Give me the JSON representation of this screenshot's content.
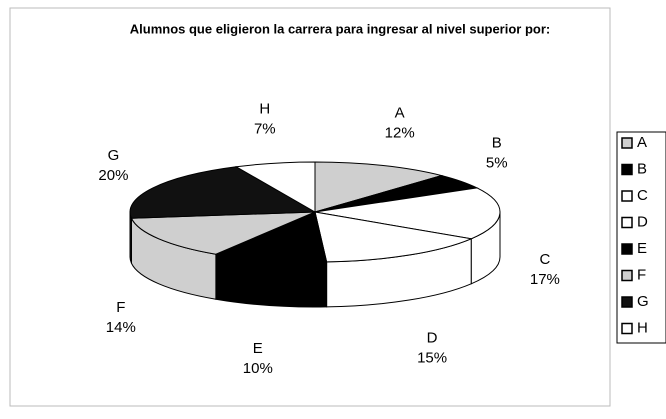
{
  "chart_data": {
    "type": "pie",
    "title": "Alumnos que eligieron la carrera para ingresar al nivel superior por:",
    "categories": [
      "A",
      "B",
      "C",
      "D",
      "E",
      "F",
      "G",
      "H"
    ],
    "values": [
      12,
      5,
      17,
      15,
      10,
      14,
      20,
      7
    ],
    "value_labels": [
      "12%",
      "5%",
      "17%",
      "15%",
      "10%",
      "14%",
      "20%",
      "7%"
    ],
    "colors": [
      "#cfcfcf",
      "#000000",
      "#ffffff",
      "#ffffff",
      "#000000",
      "#cfcfcf",
      "#111111",
      "#ffffff"
    ],
    "legend": "right"
  }
}
